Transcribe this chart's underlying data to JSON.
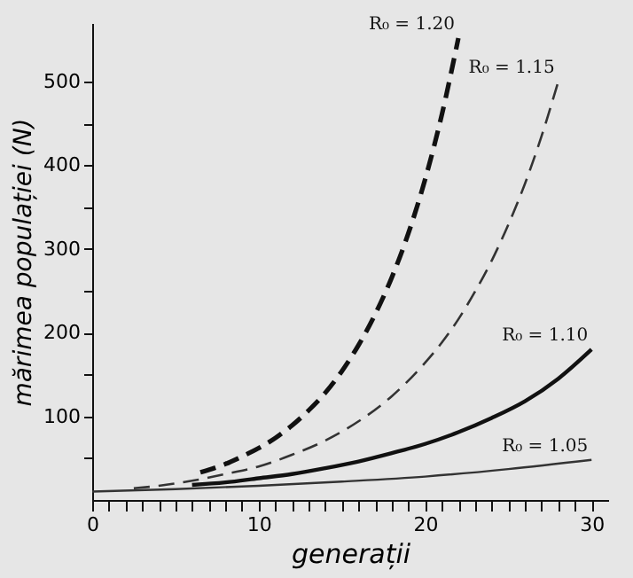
{
  "chart_data": {
    "type": "line",
    "xlabel": "generații",
    "ylabel": "mărimea populației (N)",
    "xlim": [
      0,
      31
    ],
    "ylim": [
      0,
      570
    ],
    "xticks": [
      0,
      {
        "value": 1,
        "label": null
      },
      {
        "value": 2,
        "label": null
      },
      {
        "value": 3,
        "label": null
      },
      {
        "value": 4,
        "label": null
      },
      {
        "value": 5,
        "label": null
      },
      {
        "value": 6,
        "label": null
      },
      {
        "value": 7,
        "label": null
      },
      {
        "value": 8,
        "label": null
      },
      {
        "value": 9,
        "label": null
      },
      10,
      {
        "value": 11,
        "label": null
      },
      {
        "value": 12,
        "label": null
      },
      {
        "value": 13,
        "label": null
      },
      {
        "value": 14,
        "label": null
      },
      {
        "value": 15,
        "label": null
      },
      {
        "value": 16,
        "label": null
      },
      {
        "value": 17,
        "label": null
      },
      {
        "value": 18,
        "label": null
      },
      {
        "value": 19,
        "label": null
      },
      20,
      {
        "value": 21,
        "label": null
      },
      {
        "value": 22,
        "label": null
      },
      {
        "value": 23,
        "label": null
      },
      {
        "value": 24,
        "label": null
      },
      {
        "value": 25,
        "label": null
      },
      {
        "value": 26,
        "label": null
      },
      {
        "value": 27,
        "label": null
      },
      {
        "value": 28,
        "label": null
      },
      {
        "value": 29,
        "label": null
      },
      30
    ],
    "yticks": [
      {
        "value": 50,
        "label": null
      },
      100,
      {
        "value": 150,
        "label": null
      },
      200,
      {
        "value": 250,
        "label": null
      },
      300,
      {
        "value": 350,
        "label": null
      },
      400,
      {
        "value": 450,
        "label": null
      },
      500
    ],
    "grid": false,
    "marker": "none",
    "series": [
      {
        "name": "R₀ = 1.20",
        "color": "#111111",
        "line_style": "dashed",
        "x": [
          6.5,
          7,
          8,
          9,
          10,
          11,
          12,
          13,
          14,
          15,
          16,
          17,
          18,
          19,
          20,
          21,
          22
        ],
        "values": [
          33,
          36,
          43,
          52,
          62,
          74,
          89,
          107,
          128,
          154,
          185,
          222,
          266,
          319,
          383,
          460,
          552
        ]
      },
      {
        "name": "R₀ = 1.15",
        "color": "#333333",
        "line_style": "dashed",
        "x": [
          2.5,
          4,
          6,
          8,
          10,
          12,
          14,
          16,
          18,
          20,
          21,
          22,
          23,
          24,
          25,
          26,
          27,
          28
        ],
        "values": [
          14,
          17,
          23,
          31,
          40,
          54,
          71,
          94,
          124,
          164,
          188,
          216,
          249,
          286,
          329,
          378,
          435,
          500
        ]
      },
      {
        "name": "R₀ = 1.10",
        "color": "#111111",
        "line_style": "solid",
        "x": [
          6,
          8,
          10,
          12,
          14,
          16,
          18,
          20,
          22,
          24,
          26,
          28,
          30
        ],
        "values": [
          18,
          21,
          26,
          31,
          38,
          46,
          56,
          67,
          81,
          98,
          118,
          145,
          180
        ]
      },
      {
        "name": "R₀ = 1.05",
        "color": "#333333",
        "line_style": "solid",
        "x": [
          0,
          5,
          10,
          15,
          20,
          25,
          30
        ],
        "values": [
          10,
          13,
          17,
          22,
          28,
          37,
          48
        ]
      }
    ]
  }
}
